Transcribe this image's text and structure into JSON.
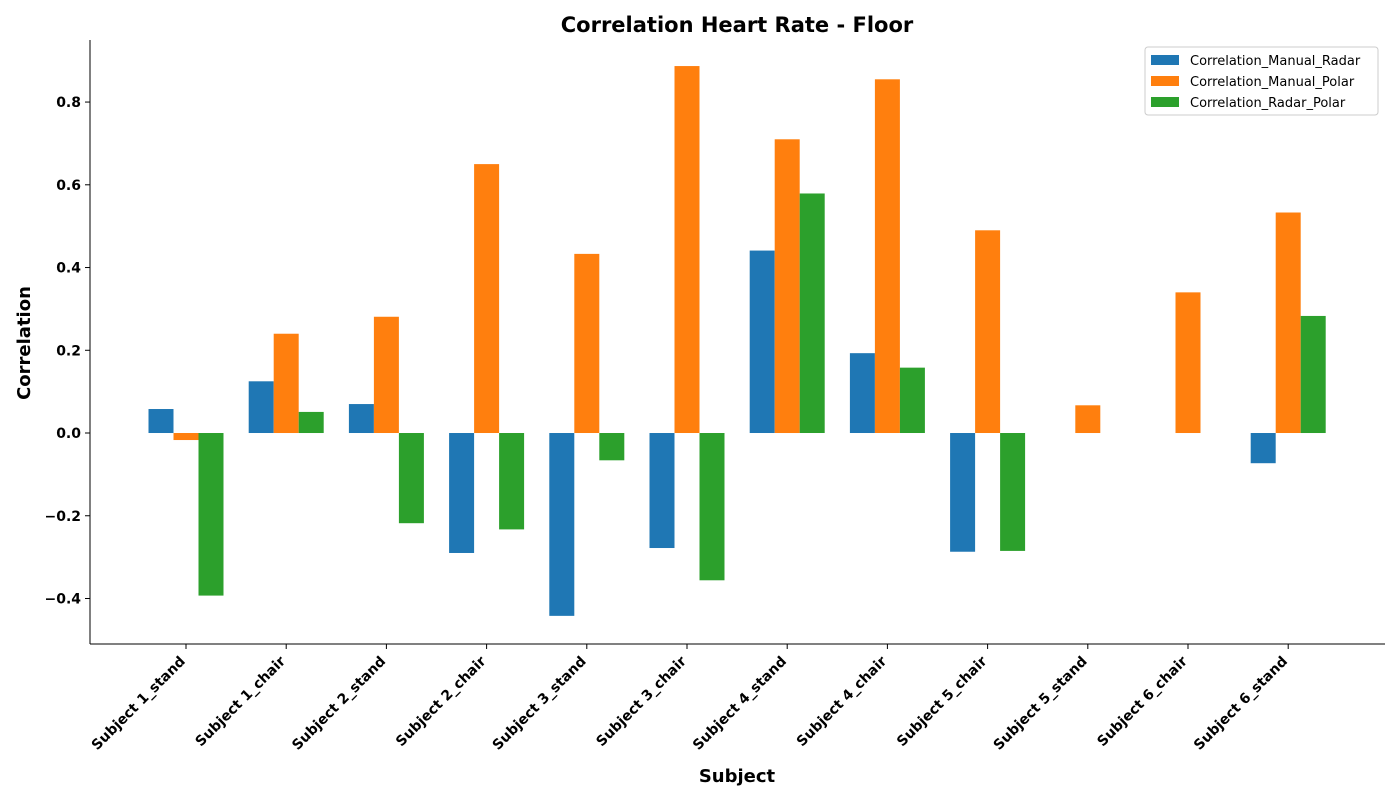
{
  "chart_data": {
    "type": "bar",
    "title": "Correlation Heart Rate - Floor",
    "xlabel": "Subject",
    "ylabel": "Correlation",
    "categories": [
      "Subject 1_stand",
      "Subject 1_chair",
      "Subject 2_stand",
      "Subject 2_chair",
      "Subject 3_stand",
      "Subject 3_chair",
      "Subject 4_stand",
      "Subject 4_chair",
      "Subject 5_chair",
      "Subject 5_stand",
      "Subject 6_chair",
      "Subject 6_stand"
    ],
    "series": [
      {
        "name": "Correlation_Manual_Radar",
        "color": "#1f77b4",
        "values": [
          0.058,
          0.125,
          0.07,
          -0.29,
          -0.442,
          -0.278,
          0.441,
          0.193,
          -0.287,
          null,
          null,
          -0.073
        ]
      },
      {
        "name": "Correlation_Manual_Polar",
        "color": "#ff7f0e",
        "values": [
          -0.017,
          0.24,
          0.281,
          0.65,
          0.433,
          0.887,
          0.71,
          0.855,
          0.49,
          0.067,
          0.34,
          0.533
        ]
      },
      {
        "name": "Correlation_Radar_Polar",
        "color": "#2ca02c",
        "values": [
          -0.393,
          0.051,
          -0.218,
          -0.233,
          -0.066,
          -0.356,
          0.579,
          0.158,
          -0.285,
          null,
          null,
          0.283
        ]
      }
    ],
    "ylim": [
      -0.51,
      0.95
    ],
    "yticks": [
      -0.4,
      -0.2,
      0.0,
      0.2,
      0.4,
      0.6,
      0.8
    ],
    "ytick_labels": [
      "−0.4",
      "−0.2",
      "0.0",
      "0.2",
      "0.4",
      "0.6",
      "0.8"
    ],
    "legend_position": "top-right",
    "grid": false
  }
}
